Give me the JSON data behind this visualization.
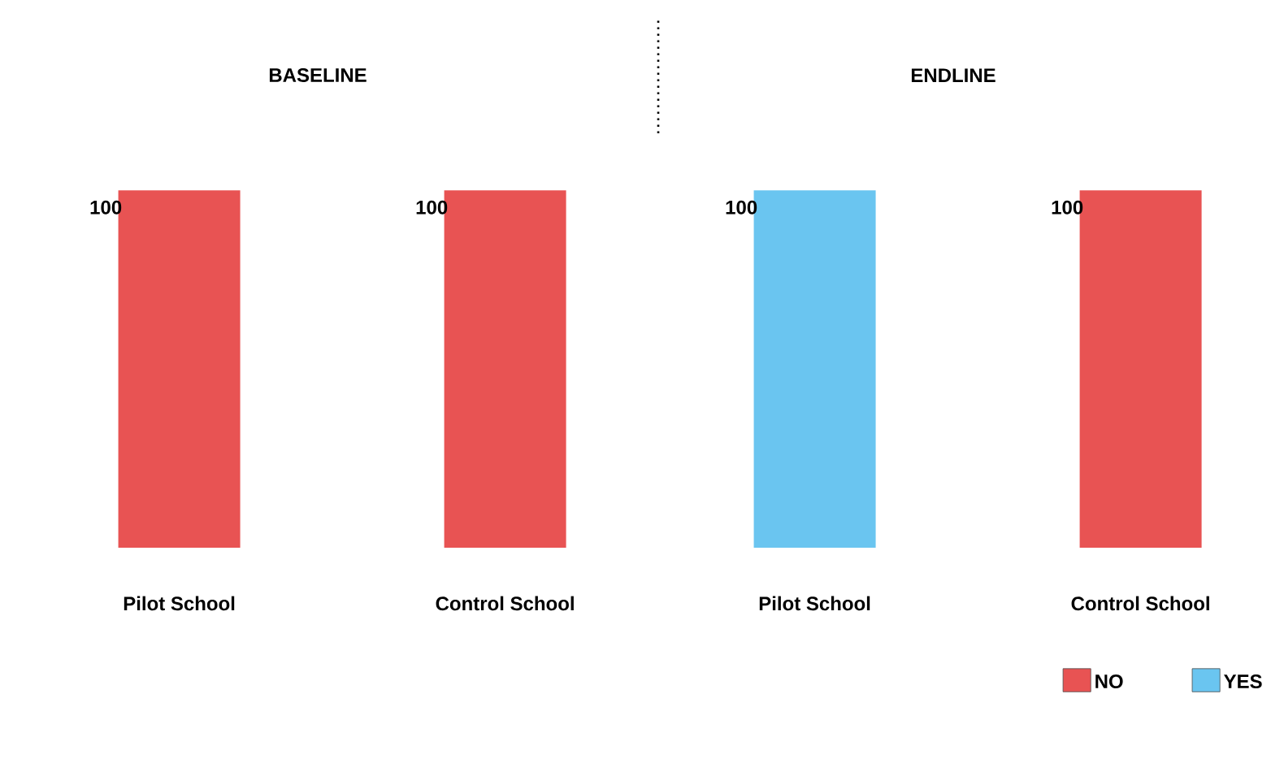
{
  "chart_data": [
    {
      "type": "bar",
      "title": "BASELINE",
      "categories": [
        "Pilot School",
        "Control School"
      ],
      "data_labels": true,
      "series": [
        {
          "color": "#e85353",
          "values": [
            100,
            100
          ]
        }
      ]
    },
    {
      "type": "bar",
      "title": "ENDLINE",
      "categories": [
        "Pilot School",
        "Control School"
      ],
      "data_labels": true,
      "legend": "bottom right",
      "series": [
        {
          "name": "NO",
          "color": "#e85353",
          "values": [
            null,
            100
          ]
        },
        {
          "name": "YES",
          "color": "#6ac5f0",
          "values": [
            100,
            null
          ]
        }
      ]
    }
  ]
}
